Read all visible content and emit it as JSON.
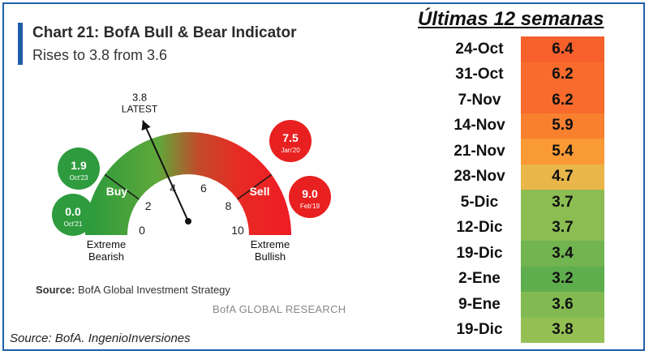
{
  "chart_data": [
    {
      "type": "gauge",
      "title": "Chart 21: BofA Bull & Bear Indicator",
      "subtitle": "Rises to 3.8 from 3.6",
      "range": [
        0,
        10
      ],
      "ticks": [
        0,
        2,
        4,
        6,
        8,
        10
      ],
      "value": 3.8,
      "value_label": "LATEST",
      "zones": [
        {
          "name": "Buy",
          "from": 0,
          "to": 2
        },
        {
          "name": "Sell",
          "from": 8,
          "to": 10
        }
      ],
      "end_labels": {
        "left": [
          "Extreme",
          "Bearish"
        ],
        "right": [
          "Extreme",
          "Bullish"
        ]
      },
      "annotations": [
        {
          "value": "1.9",
          "date": "Oct'23",
          "color": "#2e9b3e"
        },
        {
          "value": "0.0",
          "date": "Oct'21",
          "color": "#2e9b3e"
        },
        {
          "value": "7.5",
          "date": "Jan'20",
          "color": "#e82020"
        },
        {
          "value": "9.0",
          "date": "Feb'19",
          "color": "#e82020"
        }
      ],
      "source": "BofA Global Investment Strategy",
      "source_label": "Source:",
      "brand": "BofA GLOBAL RESEARCH"
    },
    {
      "type": "table",
      "title": "Últimas 12 semanas",
      "rows": [
        {
          "date": "24-Oct",
          "value": 6.4,
          "color": "#f7602b"
        },
        {
          "date": "31-Oct",
          "value": 6.2,
          "color": "#f86b2c"
        },
        {
          "date": "7-Nov",
          "value": 6.2,
          "color": "#f86b2c"
        },
        {
          "date": "14-Nov",
          "value": 5.9,
          "color": "#f9802f"
        },
        {
          "date": "21-Nov",
          "value": 5.4,
          "color": "#fa9a36"
        },
        {
          "date": "28-Nov",
          "value": 4.7,
          "color": "#e9b64a"
        },
        {
          "date": "5-Dic",
          "value": 3.7,
          "color": "#8bbd52"
        },
        {
          "date": "12-Dic",
          "value": 3.7,
          "color": "#8bbd52"
        },
        {
          "date": "19-Dic",
          "value": 3.4,
          "color": "#71b450"
        },
        {
          "date": "2-Ene",
          "value": 3.2,
          "color": "#5fae4e"
        },
        {
          "date": "9-Ene",
          "value": 3.6,
          "color": "#82ba51"
        },
        {
          "date": "19-Dic",
          "value": 3.8,
          "color": "#94c053"
        }
      ]
    }
  ],
  "footer": {
    "source": "Source: BofA. IngenioInversiones"
  }
}
